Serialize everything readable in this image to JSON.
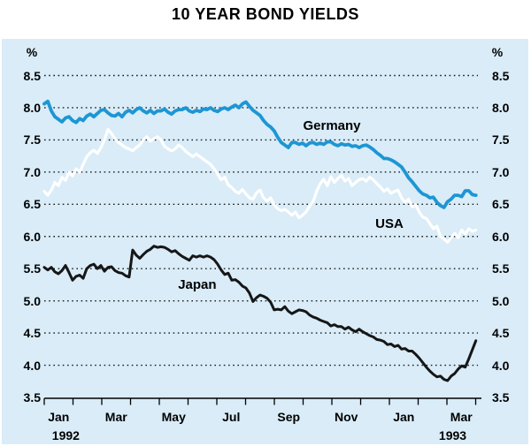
{
  "figure": {
    "title": "10 YEAR BOND YIELDS"
  },
  "chart_data": {
    "type": "line",
    "title": "10 YEAR BOND YIELDS",
    "unit_left": "%",
    "unit_right": "%",
    "grid": "dotted-horizontal",
    "legend_position": "inline-labels",
    "y_axis": {
      "min": 3.5,
      "max": 8.5,
      "tick_step": 0.5,
      "tick_values": [
        8.5,
        8.0,
        7.5,
        7.0,
        6.5,
        6.0,
        5.5,
        5.0,
        4.5,
        4.0,
        3.5
      ]
    },
    "x_axis": {
      "start": "Jan 1992",
      "end": "Mar 1993",
      "months_shown": 15,
      "month_labels": [
        {
          "label": "Jan",
          "mid_month": 0.5
        },
        {
          "label": "Mar",
          "mid_month": 2.5
        },
        {
          "label": "May",
          "mid_month": 4.5
        },
        {
          "label": "Jul",
          "mid_month": 6.5
        },
        {
          "label": "Sep",
          "mid_month": 8.5
        },
        {
          "label": "Nov",
          "mid_month": 10.5
        },
        {
          "label": "Jan",
          "mid_month": 12.5
        },
        {
          "label": "Mar",
          "mid_month": 14.5
        }
      ],
      "year_labels": [
        {
          "label": "1992",
          "center_month": 0.75
        },
        {
          "label": "1993",
          "center_month": 14.2
        }
      ]
    },
    "series_labels": [
      {
        "text": "Germany",
        "month": 10.0,
        "value": 7.71
      },
      {
        "text": "USA",
        "month": 12.0,
        "value": 6.19
      },
      {
        "text": "Japan",
        "month": 5.32,
        "value": 5.24
      }
    ],
    "series": [
      {
        "name": "Germany",
        "color": "#1d96d4",
        "width": 3.8,
        "x0_month": 0,
        "dx_month": 0.123,
        "values": [
          8.06,
          8.1,
          7.95,
          7.86,
          7.82,
          7.78,
          7.84,
          7.86,
          7.8,
          7.77,
          7.83,
          7.8,
          7.87,
          7.9,
          7.86,
          7.91,
          7.96,
          7.97,
          7.92,
          7.88,
          7.87,
          7.91,
          7.86,
          7.93,
          7.96,
          7.92,
          7.97,
          8.0,
          7.95,
          7.92,
          7.96,
          7.91,
          7.95,
          7.95,
          7.98,
          7.93,
          7.9,
          7.95,
          7.97,
          7.97,
          8.0,
          7.95,
          7.93,
          7.96,
          7.94,
          7.98,
          7.97,
          8.0,
          7.96,
          7.94,
          7.98,
          8.0,
          7.97,
          8.01,
          8.04,
          8.0,
          8.06,
          8.09,
          8.02,
          7.96,
          7.92,
          7.88,
          7.8,
          7.74,
          7.7,
          7.64,
          7.54,
          7.46,
          7.42,
          7.38,
          7.46,
          7.46,
          7.43,
          7.45,
          7.41,
          7.45,
          7.46,
          7.43,
          7.45,
          7.43,
          7.47,
          7.47,
          7.43,
          7.41,
          7.44,
          7.42,
          7.43,
          7.4,
          7.41,
          7.38,
          7.41,
          7.42,
          7.39,
          7.35,
          7.3,
          7.26,
          7.21,
          7.21,
          7.19,
          7.16,
          7.12,
          7.08,
          7.0,
          6.91,
          6.85,
          6.78,
          6.71,
          6.66,
          6.64,
          6.6,
          6.61,
          6.53,
          6.48,
          6.45,
          6.54,
          6.58,
          6.64,
          6.64,
          6.62,
          6.71,
          6.71,
          6.65,
          6.64
        ]
      },
      {
        "name": "USA",
        "color": "#ffffff",
        "width": 3.2,
        "x0_month": 0,
        "dx_month": 0.123,
        "values": [
          6.7,
          6.64,
          6.72,
          6.84,
          6.79,
          6.92,
          6.87,
          7.0,
          6.94,
          7.05,
          7.0,
          7.12,
          7.24,
          7.3,
          7.34,
          7.29,
          7.38,
          7.5,
          7.66,
          7.6,
          7.52,
          7.46,
          7.42,
          7.38,
          7.36,
          7.33,
          7.38,
          7.42,
          7.5,
          7.55,
          7.48,
          7.52,
          7.55,
          7.5,
          7.4,
          7.36,
          7.33,
          7.36,
          7.42,
          7.38,
          7.32,
          7.28,
          7.24,
          7.28,
          7.24,
          7.2,
          7.16,
          7.12,
          7.05,
          6.97,
          6.88,
          6.92,
          6.8,
          6.76,
          6.7,
          6.67,
          6.73,
          6.66,
          6.6,
          6.58,
          6.68,
          6.72,
          6.6,
          6.55,
          6.6,
          6.49,
          6.43,
          6.4,
          6.42,
          6.38,
          6.33,
          6.38,
          6.29,
          6.33,
          6.38,
          6.47,
          6.54,
          6.7,
          6.82,
          6.89,
          6.79,
          6.93,
          6.84,
          6.9,
          6.95,
          6.86,
          6.9,
          6.79,
          6.84,
          6.88,
          6.9,
          6.86,
          6.92,
          6.88,
          6.82,
          6.77,
          6.7,
          6.74,
          6.67,
          6.7,
          6.72,
          6.6,
          6.53,
          6.58,
          6.46,
          6.49,
          6.38,
          6.3,
          6.28,
          6.2,
          6.12,
          6.16,
          6.0,
          5.96,
          5.91,
          5.98,
          6.05,
          5.98,
          6.1,
          6.04,
          6.12,
          6.08,
          6.1
        ]
      },
      {
        "name": "Japan",
        "color": "#161616",
        "width": 3.0,
        "x0_month": 0,
        "dx_month": 0.123,
        "values": [
          5.52,
          5.48,
          5.52,
          5.45,
          5.42,
          5.47,
          5.55,
          5.44,
          5.32,
          5.38,
          5.4,
          5.35,
          5.5,
          5.55,
          5.57,
          5.5,
          5.55,
          5.46,
          5.52,
          5.53,
          5.47,
          5.44,
          5.43,
          5.39,
          5.37,
          5.79,
          5.71,
          5.66,
          5.72,
          5.77,
          5.8,
          5.85,
          5.83,
          5.84,
          5.83,
          5.8,
          5.76,
          5.78,
          5.73,
          5.69,
          5.66,
          5.63,
          5.7,
          5.68,
          5.7,
          5.68,
          5.7,
          5.68,
          5.64,
          5.57,
          5.48,
          5.41,
          5.43,
          5.32,
          5.33,
          5.29,
          5.23,
          5.2,
          5.12,
          4.99,
          5.05,
          5.09,
          5.07,
          5.04,
          4.98,
          4.86,
          4.87,
          4.86,
          4.91,
          4.84,
          4.8,
          4.83,
          4.86,
          4.85,
          4.83,
          4.78,
          4.75,
          4.73,
          4.7,
          4.68,
          4.66,
          4.61,
          4.63,
          4.6,
          4.6,
          4.56,
          4.59,
          4.55,
          4.52,
          4.56,
          4.52,
          4.49,
          4.46,
          4.44,
          4.4,
          4.39,
          4.37,
          4.32,
          4.33,
          4.29,
          4.31,
          4.25,
          4.26,
          4.22,
          4.22,
          4.17,
          4.11,
          4.04,
          3.97,
          3.91,
          3.86,
          3.82,
          3.83,
          3.78,
          3.76,
          3.83,
          3.87,
          3.94,
          3.99,
          3.97,
          4.1,
          4.24,
          4.38
        ]
      }
    ]
  }
}
